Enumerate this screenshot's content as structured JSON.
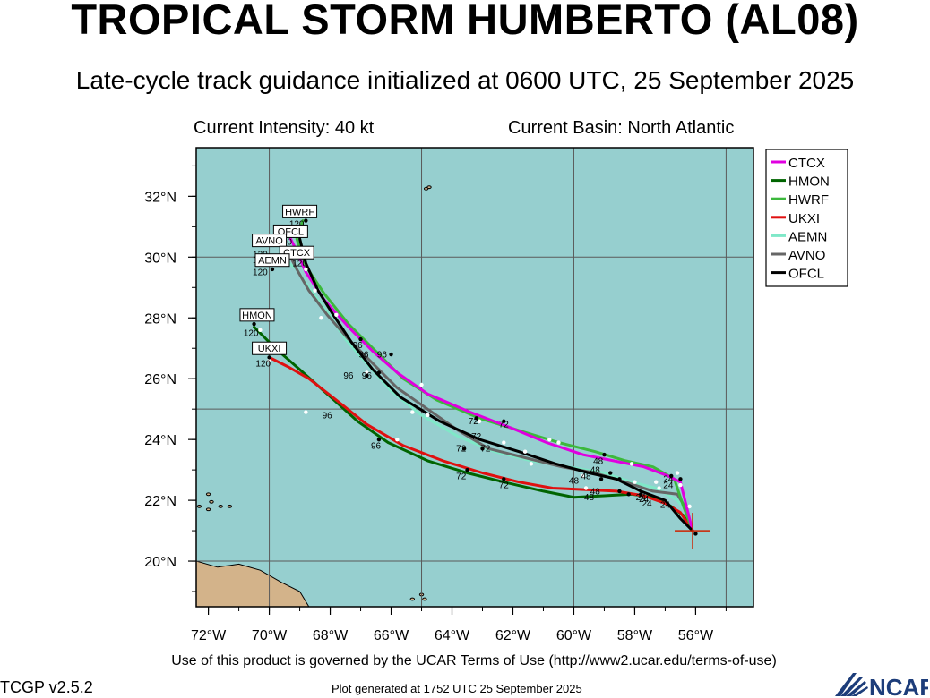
{
  "header": {
    "title": "TROPICAL STORM HUMBERTO (AL08)",
    "subtitle": "Late-cycle track guidance initialized at 0600 UTC, 25 September 2025",
    "intensity": "Current Intensity: 40 kt",
    "basin": "Current Basin: North Atlantic"
  },
  "footer": {
    "terms": "Use of this product is governed by the UCAR Terms of Use (http://www2.ucar.edu/terms-of-use)",
    "version": "TCGP v2.5.2",
    "generated": "Plot generated at 1752 UTC   25 September 2025",
    "logo_text": "NCAR"
  },
  "colors": {
    "ocean": "#96cfcf",
    "land": "#d3b38a",
    "grid": "#5a5a5a",
    "storm_marker": "#cc2200"
  },
  "map": {
    "lon_range": [
      -72.4,
      -54.1
    ],
    "lat_range": [
      18.5,
      33.6
    ],
    "lon_ticks": [
      {
        "value": -72,
        "label": "72°W"
      },
      {
        "value": -70,
        "label": "70°W"
      },
      {
        "value": -68,
        "label": "68°W"
      },
      {
        "value": -66,
        "label": "66°W"
      },
      {
        "value": -64,
        "label": "64°W"
      },
      {
        "value": -62,
        "label": "62°W"
      },
      {
        "value": -60,
        "label": "60°W"
      },
      {
        "value": -58,
        "label": "58°W"
      },
      {
        "value": -56,
        "label": "56°W"
      }
    ],
    "lat_ticks": [
      {
        "value": 20,
        "label": "20°N"
      },
      {
        "value": 22,
        "label": "22°N"
      },
      {
        "value": 24,
        "label": "24°N"
      },
      {
        "value": 26,
        "label": "26°N"
      },
      {
        "value": 28,
        "label": "28°N"
      },
      {
        "value": 30,
        "label": "30°N"
      },
      {
        "value": 32,
        "label": "32°N"
      }
    ],
    "grid_lons": [
      -70,
      -65,
      -60,
      -55
    ],
    "grid_lats": [
      20,
      25,
      30
    ],
    "current_position": {
      "lon": -56.1,
      "lat": 21.0
    }
  },
  "legend": [
    {
      "name": "CTCX",
      "color": "#e000e0"
    },
    {
      "name": "HMON",
      "color": "#006400"
    },
    {
      "name": "HWRF",
      "color": "#3cb83c"
    },
    {
      "name": "UKXI",
      "color": "#e01010"
    },
    {
      "name": "AEMN",
      "color": "#7fe8c8"
    },
    {
      "name": "AVNO",
      "color": "#666666"
    },
    {
      "name": "OFCL",
      "color": "#000000"
    }
  ],
  "tracks": [
    {
      "name": "HMON",
      "color": "#006400",
      "dashed": false,
      "points": [
        [
          -56.1,
          21.0
        ],
        [
          -56.4,
          21.5
        ],
        [
          -56.8,
          21.8
        ],
        [
          -57.4,
          22.1
        ],
        [
          -58.1,
          22.2
        ],
        [
          -59.0,
          22.15
        ],
        [
          -60.0,
          22.1
        ],
        [
          -61.0,
          22.3
        ],
        [
          -62.3,
          22.6
        ],
        [
          -63.5,
          22.9
        ],
        [
          -64.8,
          23.3
        ],
        [
          -66.1,
          23.9
        ],
        [
          -67.1,
          24.6
        ],
        [
          -68.1,
          25.5
        ],
        [
          -69.0,
          26.3
        ],
        [
          -69.8,
          27.0
        ],
        [
          -70.5,
          27.7
        ]
      ]
    },
    {
      "name": "UKXI",
      "color": "#e01010",
      "dashed": false,
      "points": [
        [
          -56.1,
          21.0
        ],
        [
          -56.5,
          21.6
        ],
        [
          -57.0,
          21.9
        ],
        [
          -57.7,
          22.15
        ],
        [
          -58.6,
          22.3
        ],
        [
          -59.6,
          22.35
        ],
        [
          -60.7,
          22.4
        ],
        [
          -61.8,
          22.6
        ],
        [
          -63.0,
          22.9
        ],
        [
          -64.3,
          23.3
        ],
        [
          -65.6,
          23.8
        ],
        [
          -66.8,
          24.5
        ],
        [
          -67.8,
          25.3
        ],
        [
          -68.7,
          26.0
        ],
        [
          -69.4,
          26.4
        ],
        [
          -70.0,
          26.7
        ]
      ]
    },
    {
      "name": "AEMN",
      "color": "#7fe8c8",
      "dashed": false,
      "points": [
        [
          -56.1,
          21.0
        ],
        [
          -56.3,
          21.6
        ],
        [
          -56.6,
          22.0
        ],
        [
          -57.3,
          22.4
        ],
        [
          -58.1,
          22.6
        ],
        [
          -59.0,
          22.9
        ],
        [
          -60.2,
          23.1
        ],
        [
          -61.4,
          23.3
        ],
        [
          -62.6,
          23.6
        ],
        [
          -63.8,
          24.1
        ],
        [
          -65.0,
          24.8
        ],
        [
          -66.0,
          25.6
        ],
        [
          -66.8,
          26.5
        ],
        [
          -67.5,
          27.3
        ],
        [
          -68.1,
          28.2
        ],
        [
          -68.7,
          29.0
        ],
        [
          -69.1,
          29.6
        ],
        [
          -69.6,
          30.0
        ]
      ]
    },
    {
      "name": "AVNO",
      "color": "#666666",
      "dashed": false,
      "points": [
        [
          -56.1,
          21.0
        ],
        [
          -56.3,
          21.7
        ],
        [
          -56.6,
          22.2
        ],
        [
          -57.4,
          22.3
        ],
        [
          -58.3,
          22.6
        ],
        [
          -59.3,
          22.9
        ],
        [
          -60.4,
          23.1
        ],
        [
          -61.6,
          23.4
        ],
        [
          -62.8,
          23.7
        ],
        [
          -63.8,
          24.3
        ],
        [
          -64.8,
          25.0
        ],
        [
          -65.8,
          25.7
        ],
        [
          -66.6,
          26.5
        ],
        [
          -67.4,
          27.3
        ],
        [
          -68.1,
          28.1
        ],
        [
          -68.7,
          28.9
        ],
        [
          -69.1,
          29.6
        ],
        [
          -69.4,
          30.2
        ]
      ]
    },
    {
      "name": "HWRF",
      "color": "#3cb83c",
      "dashed": false,
      "points": [
        [
          -56.1,
          21.0
        ],
        [
          -56.4,
          21.8
        ],
        [
          -56.7,
          22.7
        ],
        [
          -57.4,
          23.1
        ],
        [
          -58.3,
          23.3
        ],
        [
          -59.3,
          23.6
        ],
        [
          -60.5,
          23.9
        ],
        [
          -61.8,
          24.3
        ],
        [
          -63.1,
          24.7
        ],
        [
          -64.5,
          25.3
        ],
        [
          -65.6,
          26.0
        ],
        [
          -66.5,
          26.9
        ],
        [
          -67.4,
          27.8
        ],
        [
          -68.2,
          28.8
        ],
        [
          -68.8,
          29.7
        ],
        [
          -69.1,
          30.6
        ],
        [
          -68.9,
          31.2
        ]
      ]
    },
    {
      "name": "CTCX",
      "color": "#e000e0",
      "dashed": false,
      "points": [
        [
          -56.1,
          21.0
        ],
        [
          -56.3,
          21.8
        ],
        [
          -56.5,
          22.6
        ],
        [
          -56.9,
          22.8
        ],
        [
          -57.7,
          23.1
        ],
        [
          -58.7,
          23.3
        ],
        [
          -59.7,
          23.5
        ],
        [
          -60.9,
          23.9
        ],
        [
          -62.1,
          24.4
        ],
        [
          -63.4,
          24.9
        ],
        [
          -64.8,
          25.5
        ],
        [
          -65.8,
          26.2
        ],
        [
          -66.6,
          26.9
        ],
        [
          -67.4,
          27.7
        ],
        [
          -68.2,
          28.6
        ],
        [
          -68.8,
          29.5
        ],
        [
          -69.1,
          30.2
        ],
        [
          -69.3,
          30.6
        ]
      ]
    },
    {
      "name": "OFCL",
      "color": "#000000",
      "dashed": false,
      "points": [
        [
          -56.1,
          21.0
        ],
        [
          -56.5,
          21.4
        ],
        [
          -57.0,
          22.0
        ],
        [
          -57.8,
          22.3
        ],
        [
          -58.6,
          22.7
        ],
        [
          -59.5,
          22.9
        ],
        [
          -60.6,
          23.2
        ],
        [
          -61.8,
          23.6
        ],
        [
          -63.1,
          24.0
        ],
        [
          -64.4,
          24.6
        ],
        [
          -65.7,
          25.4
        ],
        [
          -66.6,
          26.3
        ],
        [
          -67.3,
          27.2
        ],
        [
          -67.9,
          28.1
        ],
        [
          -68.4,
          28.9
        ],
        [
          -68.8,
          29.8
        ],
        [
          -69.0,
          30.6
        ]
      ]
    }
  ],
  "white_dots": [
    [
      -56.2,
      21.8
    ],
    [
      -56.5,
      22.5
    ],
    [
      -57.2,
      22.4
    ],
    [
      -58.0,
      22.6
    ],
    [
      -59.7,
      22.8
    ],
    [
      -61.4,
      23.2
    ],
    [
      -61.6,
      23.6
    ],
    [
      -62.3,
      23.9
    ],
    [
      -63.1,
      24.6
    ],
    [
      -64.8,
      24.8
    ],
    [
      -65.3,
      24.9
    ],
    [
      -65.0,
      25.8
    ],
    [
      -66.8,
      26.2
    ],
    [
      -67.8,
      28.1
    ],
    [
      -68.3,
      28.0
    ],
    [
      -68.5,
      28.9
    ],
    [
      -68.8,
      29.6
    ],
    [
      -60.8,
      24.0
    ],
    [
      -60.5,
      23.9
    ],
    [
      -58.1,
      23.2
    ],
    [
      -56.6,
      22.9
    ],
    [
      -57.3,
      22.6
    ],
    [
      -59.6,
      22.4
    ],
    [
      -65.8,
      24.0
    ],
    [
      -68.8,
      24.9
    ],
    [
      -70.0,
      26.6
    ],
    [
      -70.3,
      27.6
    ]
  ],
  "black_dots": [
    [
      -56.0,
      20.9
    ],
    [
      -56.8,
      22.8
    ],
    [
      -56.5,
      22.7
    ],
    [
      -57.8,
      22.2
    ],
    [
      -58.2,
      22.2
    ],
    [
      -58.5,
      22.7
    ],
    [
      -58.8,
      22.9
    ],
    [
      -58.5,
      22.3
    ],
    [
      -59.0,
      23.5
    ],
    [
      -59.1,
      22.7
    ],
    [
      -62.3,
      24.6
    ],
    [
      -62.3,
      22.7
    ],
    [
      -63.2,
      24.7
    ],
    [
      -63.0,
      23.7
    ],
    [
      -63.6,
      23.7
    ],
    [
      -63.5,
      23.0
    ],
    [
      -66.0,
      26.8
    ],
    [
      -66.4,
      26.2
    ],
    [
      -67.0,
      27.3
    ],
    [
      -66.8,
      26.1
    ],
    [
      -66.4,
      24.0
    ],
    [
      -68.8,
      31.2
    ],
    [
      -68.8,
      30.9
    ],
    [
      -69.4,
      30.3
    ],
    [
      -69.6,
      30.0
    ],
    [
      -69.9,
      29.6
    ],
    [
      -70.5,
      27.8
    ],
    [
      -70.0,
      26.7
    ]
  ],
  "tau_labels": [
    {
      "text": "24",
      "lon": -56.9,
      "lat": 22.6
    },
    {
      "text": "24",
      "lon": -56.9,
      "lat": 22.4
    },
    {
      "text": "24",
      "lon": -57.8,
      "lat": 22.0
    },
    {
      "text": "24",
      "lon": -57.6,
      "lat": 21.8
    },
    {
      "text": "24",
      "lon": -57.0,
      "lat": 21.75
    },
    {
      "text": "24",
      "lon": -57.7,
      "lat": 21.95
    },
    {
      "text": "48",
      "lon": -59.3,
      "lat": 22.9
    },
    {
      "text": "48",
      "lon": -59.2,
      "lat": 23.2
    },
    {
      "text": "48",
      "lon": -59.6,
      "lat": 22.7
    },
    {
      "text": "48",
      "lon": -60.0,
      "lat": 22.55
    },
    {
      "text": "48",
      "lon": -59.5,
      "lat": 22.0
    },
    {
      "text": "48",
      "lon": -59.3,
      "lat": 22.2
    },
    {
      "text": "72",
      "lon": -63.3,
      "lat": 24.5
    },
    {
      "text": "72",
      "lon": -62.3,
      "lat": 24.4
    },
    {
      "text": "72",
      "lon": -63.2,
      "lat": 24.0
    },
    {
      "text": "72",
      "lon": -63.7,
      "lat": 23.6
    },
    {
      "text": "72",
      "lon": -62.9,
      "lat": 23.6
    },
    {
      "text": "72",
      "lon": -63.7,
      "lat": 22.7
    },
    {
      "text": "72",
      "lon": -62.3,
      "lat": 22.4
    },
    {
      "text": "96",
      "lon": -67.1,
      "lat": 27.0
    },
    {
      "text": "96",
      "lon": -66.9,
      "lat": 26.7
    },
    {
      "text": "96",
      "lon": -66.3,
      "lat": 26.7
    },
    {
      "text": "96",
      "lon": -67.4,
      "lat": 26.0
    },
    {
      "text": "96",
      "lon": -66.8,
      "lat": 26.0
    },
    {
      "text": "96",
      "lon": -68.1,
      "lat": 24.7
    },
    {
      "text": "96",
      "lon": -66.5,
      "lat": 23.7
    },
    {
      "text": "120",
      "lon": -70.3,
      "lat": 29.8
    },
    {
      "text": "120",
      "lon": -70.3,
      "lat": 30.0
    },
    {
      "text": "120",
      "lon": -69.5,
      "lat": 30.4
    },
    {
      "text": "120",
      "lon": -69.8,
      "lat": 30.5
    },
    {
      "text": "120",
      "lon": -69.0,
      "lat": 29.7
    },
    {
      "text": "120",
      "lon": -69.1,
      "lat": 31.0
    },
    {
      "text": "120",
      "lon": -70.3,
      "lat": 29.4
    },
    {
      "text": "120",
      "lon": -70.6,
      "lat": 27.4
    },
    {
      "text": "120",
      "lon": -70.2,
      "lat": 26.4
    }
  ],
  "model_boxes": [
    {
      "text": "HWRF",
      "lon": -69.0,
      "lat": 31.5
    },
    {
      "text": "OFCL",
      "lon": -69.3,
      "lat": 30.85
    },
    {
      "text": "AVNO",
      "lon": -70.0,
      "lat": 30.55
    },
    {
      "text": "CTCX",
      "lon": -69.1,
      "lat": 30.15
    },
    {
      "text": "AEMN",
      "lon": -69.9,
      "lat": 29.9
    },
    {
      "text": "HMON",
      "lon": -70.4,
      "lat": 28.1
    },
    {
      "text": "UKXI",
      "lon": -70.0,
      "lat": 27.0
    }
  ],
  "land_polygons": [
    [
      [
        -72.4,
        20.0
      ],
      [
        -71.7,
        19.8
      ],
      [
        -71.0,
        19.9
      ],
      [
        -70.3,
        19.7
      ],
      [
        -69.6,
        19.3
      ],
      [
        -69.0,
        19.0
      ],
      [
        -68.7,
        18.5
      ],
      [
        -72.4,
        18.5
      ]
    ]
  ],
  "islands": [
    [
      -64.75,
      32.3
    ],
    [
      -64.85,
      32.25
    ],
    [
      -71.6,
      21.8
    ],
    [
      -71.3,
      21.8
    ],
    [
      -72.3,
      21.8
    ],
    [
      -72.0,
      21.7
    ],
    [
      -72.0,
      22.2
    ],
    [
      -71.9,
      21.95
    ],
    [
      -65.0,
      18.9
    ],
    [
      -64.9,
      18.75
    ],
    [
      -65.3,
      18.75
    ]
  ]
}
